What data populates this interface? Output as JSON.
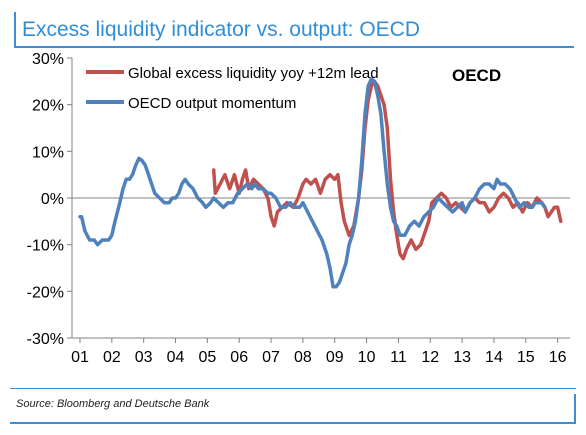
{
  "title": "Excess liquidity indicator vs. output: OECD",
  "source": "Source: Bloomberg and Deutsche Bank",
  "colors": {
    "accent": "#3a8fd6",
    "red_series": "#c0504d",
    "blue_series": "#4f81bd"
  },
  "chart_data": {
    "type": "line",
    "annotation": "OECD",
    "ylim": [
      -30,
      30
    ],
    "y_ticks": [
      30,
      20,
      10,
      0,
      -10,
      -20,
      -30
    ],
    "y_tick_labels": [
      "30%",
      "20%",
      "10%",
      "0%",
      "-10%",
      "-20%",
      "-30%"
    ],
    "x_tick_labels": [
      "01",
      "02",
      "03",
      "04",
      "05",
      "06",
      "07",
      "08",
      "09",
      "10",
      "11",
      "12",
      "13",
      "14",
      "15",
      "16"
    ],
    "xlim": [
      2001.0,
      2016.2
    ],
    "grid": false,
    "legend_position": "top",
    "series": [
      {
        "name": "Global excess liquidity yoy +12m lead",
        "color": "#c0504d",
        "points": [
          [
            2005.2,
            6
          ],
          [
            2005.25,
            1
          ],
          [
            2005.4,
            3
          ],
          [
            2005.55,
            5
          ],
          [
            2005.7,
            2
          ],
          [
            2005.85,
            5
          ],
          [
            2006.0,
            1
          ],
          [
            2006.1,
            4
          ],
          [
            2006.2,
            6
          ],
          [
            2006.3,
            2
          ],
          [
            2006.45,
            4
          ],
          [
            2006.6,
            3
          ],
          [
            2006.75,
            2
          ],
          [
            2006.9,
            0
          ],
          [
            2007.0,
            -4
          ],
          [
            2007.1,
            -6
          ],
          [
            2007.2,
            -3
          ],
          [
            2007.35,
            -2
          ],
          [
            2007.5,
            -1
          ],
          [
            2007.7,
            -2
          ],
          [
            2007.85,
            0
          ],
          [
            2008.0,
            3
          ],
          [
            2008.1,
            4
          ],
          [
            2008.25,
            3
          ],
          [
            2008.4,
            4
          ],
          [
            2008.55,
            1
          ],
          [
            2008.7,
            4
          ],
          [
            2008.85,
            5
          ],
          [
            2009.0,
            4
          ],
          [
            2009.1,
            5
          ],
          [
            2009.2,
            -1
          ],
          [
            2009.3,
            -5
          ],
          [
            2009.45,
            -8
          ],
          [
            2009.6,
            -6
          ],
          [
            2009.75,
            0
          ],
          [
            2009.85,
            6
          ],
          [
            2009.95,
            15
          ],
          [
            2010.05,
            21
          ],
          [
            2010.15,
            24
          ],
          [
            2010.25,
            25
          ],
          [
            2010.35,
            24
          ],
          [
            2010.45,
            22
          ],
          [
            2010.55,
            20
          ],
          [
            2010.65,
            15
          ],
          [
            2010.75,
            4
          ],
          [
            2010.85,
            -3
          ],
          [
            2010.95,
            -8
          ],
          [
            2011.05,
            -12
          ],
          [
            2011.15,
            -13
          ],
          [
            2011.25,
            -11
          ],
          [
            2011.4,
            -9
          ],
          [
            2011.55,
            -11
          ],
          [
            2011.7,
            -10
          ],
          [
            2011.85,
            -7
          ],
          [
            2011.95,
            -5
          ],
          [
            2012.05,
            -1
          ],
          [
            2012.2,
            0
          ],
          [
            2012.35,
            1
          ],
          [
            2012.5,
            0
          ],
          [
            2012.65,
            -2
          ],
          [
            2012.8,
            -1
          ],
          [
            2012.95,
            -2
          ],
          [
            2013.1,
            -3
          ],
          [
            2013.25,
            -1
          ],
          [
            2013.4,
            0
          ],
          [
            2013.55,
            -1
          ],
          [
            2013.7,
            -1
          ],
          [
            2013.85,
            -3
          ],
          [
            2014.0,
            -2
          ],
          [
            2014.15,
            0
          ],
          [
            2014.3,
            1
          ],
          [
            2014.45,
            0
          ],
          [
            2014.6,
            -2
          ],
          [
            2014.75,
            -1
          ],
          [
            2014.9,
            -3
          ],
          [
            2015.05,
            -1
          ],
          [
            2015.2,
            -2
          ],
          [
            2015.35,
            0
          ],
          [
            2015.5,
            -1
          ],
          [
            2015.6,
            -2
          ],
          [
            2015.7,
            -4
          ],
          [
            2015.8,
            -3
          ],
          [
            2015.9,
            -2
          ],
          [
            2016.0,
            -2
          ],
          [
            2016.1,
            -5
          ]
        ]
      },
      {
        "name": "OECD output momentum",
        "color": "#4f81bd",
        "points": [
          [
            2001.0,
            -4
          ],
          [
            2001.05,
            -4
          ],
          [
            2001.15,
            -7
          ],
          [
            2001.3,
            -9
          ],
          [
            2001.45,
            -9
          ],
          [
            2001.55,
            -10
          ],
          [
            2001.7,
            -9
          ],
          [
            2001.8,
            -9
          ],
          [
            2001.9,
            -9
          ],
          [
            2002.0,
            -8
          ],
          [
            2002.1,
            -5
          ],
          [
            2002.25,
            -1
          ],
          [
            2002.35,
            2
          ],
          [
            2002.45,
            4
          ],
          [
            2002.55,
            4
          ],
          [
            2002.65,
            5
          ],
          [
            2002.75,
            7
          ],
          [
            2002.85,
            8.5
          ],
          [
            2002.95,
            8
          ],
          [
            2003.05,
            7
          ],
          [
            2003.15,
            5
          ],
          [
            2003.25,
            3
          ],
          [
            2003.35,
            1
          ],
          [
            2003.5,
            0
          ],
          [
            2003.65,
            -1
          ],
          [
            2003.8,
            -1
          ],
          [
            2003.9,
            0
          ],
          [
            2004.0,
            0
          ],
          [
            2004.1,
            1
          ],
          [
            2004.2,
            3
          ],
          [
            2004.3,
            4
          ],
          [
            2004.4,
            3
          ],
          [
            2004.55,
            2
          ],
          [
            2004.7,
            0
          ],
          [
            2004.85,
            -1
          ],
          [
            2004.95,
            -2
          ],
          [
            2005.1,
            -1
          ],
          [
            2005.2,
            0
          ],
          [
            2005.35,
            -1
          ],
          [
            2005.5,
            -2
          ],
          [
            2005.65,
            -1
          ],
          [
            2005.8,
            -1
          ],
          [
            2005.95,
            1
          ],
          [
            2006.1,
            2
          ],
          [
            2006.25,
            3
          ],
          [
            2006.4,
            2
          ],
          [
            2006.5,
            3
          ],
          [
            2006.6,
            2
          ],
          [
            2006.75,
            2
          ],
          [
            2006.9,
            1
          ],
          [
            2007.0,
            1
          ],
          [
            2007.15,
            0
          ],
          [
            2007.3,
            -2
          ],
          [
            2007.45,
            -2
          ],
          [
            2007.6,
            -1
          ],
          [
            2007.75,
            -2
          ],
          [
            2007.9,
            -2
          ],
          [
            2008.0,
            -1
          ],
          [
            2008.15,
            -3
          ],
          [
            2008.3,
            -5
          ],
          [
            2008.45,
            -7
          ],
          [
            2008.6,
            -9
          ],
          [
            2008.75,
            -12
          ],
          [
            2008.85,
            -15
          ],
          [
            2008.95,
            -19
          ],
          [
            2009.05,
            -19
          ],
          [
            2009.15,
            -18
          ],
          [
            2009.25,
            -16
          ],
          [
            2009.35,
            -14
          ],
          [
            2009.45,
            -10
          ],
          [
            2009.55,
            -8
          ],
          [
            2009.65,
            -5
          ],
          [
            2009.75,
            0
          ],
          [
            2009.85,
            8
          ],
          [
            2009.95,
            18
          ],
          [
            2010.05,
            24
          ],
          [
            2010.15,
            25.5
          ],
          [
            2010.25,
            25
          ],
          [
            2010.35,
            22
          ],
          [
            2010.45,
            18
          ],
          [
            2010.55,
            10
          ],
          [
            2010.65,
            3
          ],
          [
            2010.75,
            -2
          ],
          [
            2010.85,
            -5
          ],
          [
            2010.95,
            -6
          ],
          [
            2011.05,
            -8
          ],
          [
            2011.2,
            -8
          ],
          [
            2011.35,
            -6
          ],
          [
            2011.5,
            -5
          ],
          [
            2011.65,
            -6
          ],
          [
            2011.8,
            -4
          ],
          [
            2011.95,
            -3
          ],
          [
            2012.1,
            -2
          ],
          [
            2012.25,
            0
          ],
          [
            2012.4,
            -1
          ],
          [
            2012.55,
            -2
          ],
          [
            2012.7,
            -3
          ],
          [
            2012.85,
            -2
          ],
          [
            2013.0,
            -1
          ],
          [
            2013.1,
            -3
          ],
          [
            2013.25,
            -1
          ],
          [
            2013.4,
            0
          ],
          [
            2013.55,
            2
          ],
          [
            2013.7,
            3
          ],
          [
            2013.85,
            3
          ],
          [
            2014.0,
            2
          ],
          [
            2014.1,
            4
          ],
          [
            2014.2,
            3
          ],
          [
            2014.35,
            3
          ],
          [
            2014.5,
            2
          ],
          [
            2014.65,
            0
          ],
          [
            2014.8,
            -2
          ],
          [
            2014.95,
            -1
          ],
          [
            2015.1,
            -2
          ],
          [
            2015.2,
            -2
          ],
          [
            2015.3,
            -1
          ],
          [
            2015.4,
            -1
          ],
          [
            2015.5,
            -1
          ],
          [
            2015.6,
            -2
          ]
        ]
      }
    ]
  }
}
